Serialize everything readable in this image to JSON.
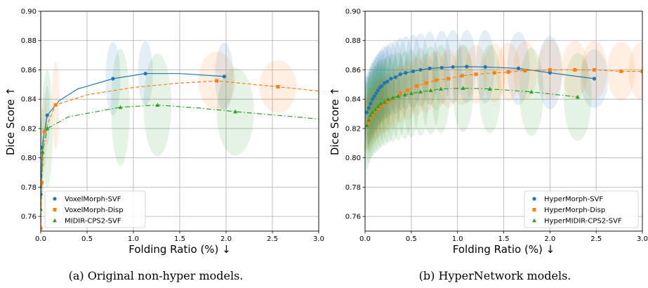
{
  "chart_data": [
    {
      "type": "line",
      "caption": "(a) Original non-hyper models.",
      "xlabel": "Folding Ratio (%) ↓",
      "ylabel": "Dice Score ↑",
      "xlim": [
        0,
        3.0
      ],
      "ylim": [
        0.75,
        0.9
      ],
      "xticks": [
        "0.0",
        "0.5",
        "1.0",
        "1.5",
        "2.0",
        "2.5",
        "3.0"
      ],
      "yticks": [
        "0.76",
        "0.78",
        "0.80",
        "0.82",
        "0.84",
        "0.86",
        "0.88",
        "0.90"
      ],
      "xtick_values": [
        0,
        0.5,
        1.0,
        1.5,
        2.0,
        2.5,
        3.0
      ],
      "ytick_values": [
        0.76,
        0.78,
        0.8,
        0.82,
        0.84,
        0.86,
        0.88,
        0.9
      ],
      "grid": true,
      "legend_position": "bottom-left",
      "series": [
        {
          "name": "VoxelMorph-SVF",
          "color": "#1f77b4",
          "marker": "circle",
          "line_style": "solid",
          "points": [
            [
              0.0,
              0.775
            ],
            [
              0.005,
              0.807
            ],
            [
              0.07,
              0.829
            ],
            [
              0.78,
              0.854
            ],
            [
              1.13,
              0.8575
            ],
            [
              1.98,
              0.8555
            ]
          ],
          "spread": [
            [
              0.0,
              0.01
            ],
            [
              0.008,
              0.02
            ],
            [
              0.03,
              0.02
            ],
            [
              0.08,
              0.025
            ],
            [
              0.08,
              0.022
            ],
            [
              0.1,
              0.023
            ]
          ],
          "curve": [
            [
              0.0,
              0.775
            ],
            [
              0.02,
              0.81
            ],
            [
              0.07,
              0.829
            ],
            [
              0.2,
              0.839
            ],
            [
              0.4,
              0.847
            ],
            [
              0.78,
              0.854
            ],
            [
              1.13,
              0.8575
            ],
            [
              1.5,
              0.8575
            ],
            [
              1.98,
              0.8555
            ]
          ]
        },
        {
          "name": "VoxelMorph-Disp",
          "color": "#ff7f0e",
          "marker": "square",
          "line_style": "dashed",
          "points": [
            [
              0.0,
              0.752
            ],
            [
              0.01,
              0.783
            ],
            [
              0.04,
              0.818
            ],
            [
              0.16,
              0.836
            ],
            [
              1.9,
              0.8525
            ],
            [
              2.56,
              0.8485
            ]
          ],
          "spread": [
            [
              0.005,
              0.01
            ],
            [
              0.02,
              0.02
            ],
            [
              0.03,
              0.025
            ],
            [
              0.04,
              0.03
            ],
            [
              0.2,
              0.02
            ],
            [
              0.2,
              0.018
            ]
          ],
          "curve": [
            [
              0.0,
              0.752
            ],
            [
              0.01,
              0.783
            ],
            [
              0.04,
              0.818
            ],
            [
              0.16,
              0.836
            ],
            [
              0.5,
              0.843
            ],
            [
              1.0,
              0.848
            ],
            [
              1.5,
              0.851
            ],
            [
              1.9,
              0.8525
            ],
            [
              2.56,
              0.8485
            ],
            [
              3.0,
              0.8455
            ]
          ]
        },
        {
          "name": "MIDIR-CPS2-SVF",
          "color": "#2ca02c",
          "marker": "triangle",
          "line_style": "dashdot",
          "points": [
            [
              0.0,
              0.765
            ],
            [
              0.02,
              0.804
            ],
            [
              0.07,
              0.82
            ],
            [
              0.86,
              0.8345
            ],
            [
              1.26,
              0.836
            ],
            [
              2.1,
              0.8315
            ]
          ],
          "spread": [
            [
              0.005,
              0.02
            ],
            [
              0.02,
              0.03
            ],
            [
              0.06,
              0.04
            ],
            [
              0.1,
              0.04
            ],
            [
              0.15,
              0.035
            ],
            [
              0.2,
              0.03
            ]
          ],
          "curve": [
            [
              0.0,
              0.765
            ],
            [
              0.02,
              0.804
            ],
            [
              0.07,
              0.82
            ],
            [
              0.3,
              0.828
            ],
            [
              0.86,
              0.8345
            ],
            [
              1.26,
              0.836
            ],
            [
              1.7,
              0.834
            ],
            [
              2.1,
              0.8315
            ],
            [
              3.0,
              0.8265
            ]
          ]
        }
      ]
    },
    {
      "type": "line",
      "caption": "(b) HyperNetwork models.",
      "xlabel": "Folding Ratio (%) ↓",
      "ylabel": "Dice Score ↑",
      "xlim": [
        0,
        3.0
      ],
      "ylim": [
        0.75,
        0.9
      ],
      "xticks": [
        "0.0",
        "0.5",
        "1.0",
        "1.5",
        "2.0",
        "2.5",
        "3.0"
      ],
      "yticks": [
        "0.76",
        "0.78",
        "0.80",
        "0.82",
        "0.84",
        "0.86",
        "0.88",
        "0.90"
      ],
      "xtick_values": [
        0,
        0.5,
        1.0,
        1.5,
        2.0,
        2.5,
        3.0
      ],
      "ytick_values": [
        0.76,
        0.78,
        0.8,
        0.82,
        0.84,
        0.86,
        0.88,
        0.9
      ],
      "grid": true,
      "legend_position": "bottom-right",
      "series": [
        {
          "name": "HyperMorph-SVF",
          "color": "#1f77b4",
          "marker": "circle",
          "line_style": "solid",
          "points": [
            [
              0.02,
              0.831
            ],
            [
              0.04,
              0.834
            ],
            [
              0.06,
              0.837
            ],
            [
              0.08,
              0.84
            ],
            [
              0.1,
              0.842
            ],
            [
              0.12,
              0.844
            ],
            [
              0.14,
              0.846
            ],
            [
              0.16,
              0.848
            ],
            [
              0.18,
              0.849
            ],
            [
              0.21,
              0.851
            ],
            [
              0.24,
              0.852
            ],
            [
              0.28,
              0.854
            ],
            [
              0.33,
              0.855
            ],
            [
              0.38,
              0.857
            ],
            [
              0.44,
              0.858
            ],
            [
              0.52,
              0.859
            ],
            [
              0.6,
              0.86
            ],
            [
              0.7,
              0.861
            ],
            [
              0.83,
              0.8615
            ],
            [
              0.95,
              0.862
            ],
            [
              1.1,
              0.8622
            ],
            [
              1.3,
              0.862
            ],
            [
              1.66,
              0.861
            ],
            [
              2.0,
              0.858
            ],
            [
              2.48,
              0.854
            ]
          ],
          "spread": [
            [
              0.05,
              0.025
            ],
            [
              0.05,
              0.025
            ],
            [
              0.06,
              0.025
            ],
            [
              0.06,
              0.025
            ],
            [
              0.07,
              0.025
            ],
            [
              0.07,
              0.025
            ],
            [
              0.07,
              0.025
            ],
            [
              0.07,
              0.025
            ],
            [
              0.07,
              0.025
            ],
            [
              0.08,
              0.025
            ],
            [
              0.08,
              0.025
            ],
            [
              0.08,
              0.025
            ],
            [
              0.08,
              0.025
            ],
            [
              0.08,
              0.025
            ],
            [
              0.08,
              0.025
            ],
            [
              0.09,
              0.025
            ],
            [
              0.09,
              0.025
            ],
            [
              0.09,
              0.025
            ],
            [
              0.1,
              0.025
            ],
            [
              0.1,
              0.025
            ],
            [
              0.1,
              0.025
            ],
            [
              0.1,
              0.025
            ],
            [
              0.12,
              0.025
            ],
            [
              0.13,
              0.025
            ],
            [
              0.15,
              0.02
            ]
          ]
        },
        {
          "name": "HyperMorph-Disp",
          "color": "#ff7f0e",
          "marker": "square",
          "line_style": "dashed",
          "points": [
            [
              0.03,
              0.823
            ],
            [
              0.05,
              0.826
            ],
            [
              0.08,
              0.829
            ],
            [
              0.11,
              0.832
            ],
            [
              0.15,
              0.834
            ],
            [
              0.19,
              0.836
            ],
            [
              0.24,
              0.838
            ],
            [
              0.3,
              0.84
            ],
            [
              0.38,
              0.844
            ],
            [
              0.46,
              0.846
            ],
            [
              0.56,
              0.849
            ],
            [
              0.66,
              0.851
            ],
            [
              0.77,
              0.853
            ],
            [
              0.9,
              0.854
            ],
            [
              1.05,
              0.856
            ],
            [
              1.2,
              0.857
            ],
            [
              1.4,
              0.858
            ],
            [
              1.55,
              0.8585
            ],
            [
              1.73,
              0.8595
            ],
            [
              2.0,
              0.86
            ],
            [
              2.27,
              0.86
            ],
            [
              2.48,
              0.86
            ],
            [
              2.77,
              0.859
            ],
            [
              3.0,
              0.859
            ]
          ],
          "spread": [
            [
              0.04,
              0.02
            ],
            [
              0.05,
              0.02
            ],
            [
              0.06,
              0.02
            ],
            [
              0.07,
              0.02
            ],
            [
              0.07,
              0.02
            ],
            [
              0.08,
              0.02
            ],
            [
              0.08,
              0.02
            ],
            [
              0.09,
              0.02
            ],
            [
              0.09,
              0.02
            ],
            [
              0.1,
              0.02
            ],
            [
              0.1,
              0.02
            ],
            [
              0.1,
              0.02
            ],
            [
              0.11,
              0.02
            ],
            [
              0.11,
              0.02
            ],
            [
              0.12,
              0.02
            ],
            [
              0.12,
              0.02
            ],
            [
              0.12,
              0.02
            ],
            [
              0.13,
              0.02
            ],
            [
              0.13,
              0.02
            ],
            [
              0.14,
              0.02
            ],
            [
              0.14,
              0.02
            ],
            [
              0.14,
              0.02
            ],
            [
              0.15,
              0.02
            ],
            [
              0.15,
              0.02
            ]
          ]
        },
        {
          "name": "HyperMIDIR-CPS2-SVF",
          "color": "#2ca02c",
          "marker": "triangle",
          "line_style": "dashdot",
          "points": [
            [
              0.02,
              0.822
            ],
            [
              0.04,
              0.826
            ],
            [
              0.06,
              0.829
            ],
            [
              0.08,
              0.831
            ],
            [
              0.11,
              0.833
            ],
            [
              0.14,
              0.835
            ],
            [
              0.17,
              0.837
            ],
            [
              0.21,
              0.838
            ],
            [
              0.25,
              0.84
            ],
            [
              0.3,
              0.841
            ],
            [
              0.36,
              0.842
            ],
            [
              0.43,
              0.843
            ],
            [
              0.5,
              0.844
            ],
            [
              0.6,
              0.845
            ],
            [
              0.71,
              0.846
            ],
            [
              0.82,
              0.847
            ],
            [
              1.06,
              0.8475
            ],
            [
              1.35,
              0.847
            ],
            [
              1.8,
              0.845
            ],
            [
              2.3,
              0.8415
            ]
          ],
          "spread": [
            [
              0.04,
              0.03
            ],
            [
              0.05,
              0.03
            ],
            [
              0.05,
              0.03
            ],
            [
              0.06,
              0.03
            ],
            [
              0.06,
              0.03
            ],
            [
              0.07,
              0.03
            ],
            [
              0.07,
              0.03
            ],
            [
              0.07,
              0.03
            ],
            [
              0.08,
              0.03
            ],
            [
              0.08,
              0.03
            ],
            [
              0.08,
              0.03
            ],
            [
              0.09,
              0.03
            ],
            [
              0.09,
              0.03
            ],
            [
              0.09,
              0.03
            ],
            [
              0.1,
              0.03
            ],
            [
              0.1,
              0.03
            ],
            [
              0.11,
              0.03
            ],
            [
              0.12,
              0.03
            ],
            [
              0.13,
              0.03
            ],
            [
              0.15,
              0.03
            ]
          ]
        }
      ]
    }
  ]
}
